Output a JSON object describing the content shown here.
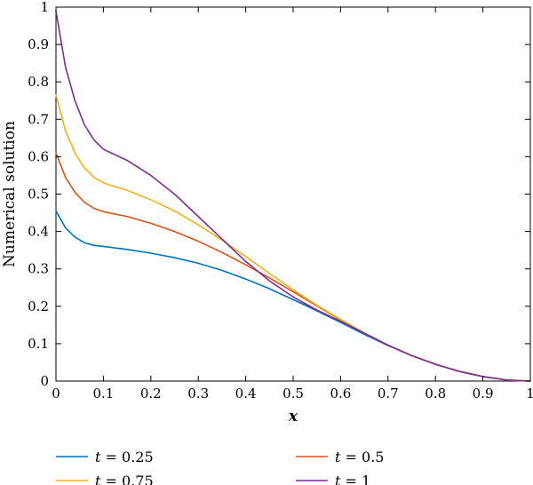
{
  "chart_data": {
    "type": "line",
    "xlabel": "x",
    "ylabel": "Numerical solution",
    "xlim": [
      0,
      1
    ],
    "ylim": [
      0,
      1
    ],
    "xticks": [
      "0",
      "0.1",
      "0.2",
      "0.3",
      "0.4",
      "0.5",
      "0.6",
      "0.7",
      "0.8",
      "0.9",
      "1"
    ],
    "yticks": [
      "0",
      "0.1",
      "0.2",
      "0.3",
      "0.4",
      "0.5",
      "0.6",
      "0.7",
      "0.8",
      "0.9",
      "1"
    ],
    "grid": false,
    "legend_position": "bottom",
    "x": [
      0,
      0.02,
      0.04,
      0.06,
      0.08,
      0.1,
      0.15,
      0.2,
      0.25,
      0.3,
      0.35,
      0.4,
      0.45,
      0.5,
      0.55,
      0.6,
      0.65,
      0.7,
      0.75,
      0.8,
      0.85,
      0.9,
      0.95,
      1
    ],
    "series": [
      {
        "name_prefix": "t",
        "name_value": " = 0.25",
        "color": "#0072BD",
        "values": [
          0.455,
          0.41,
          0.385,
          0.37,
          0.363,
          0.36,
          0.352,
          0.342,
          0.33,
          0.315,
          0.296,
          0.273,
          0.247,
          0.218,
          0.188,
          0.157,
          0.125,
          0.095,
          0.068,
          0.045,
          0.026,
          0.012,
          0.003,
          0.0
        ]
      },
      {
        "name_prefix": "t",
        "name_value": " = 0.5",
        "color": "#D95319",
        "values": [
          0.61,
          0.545,
          0.505,
          0.478,
          0.462,
          0.453,
          0.44,
          0.422,
          0.4,
          0.374,
          0.344,
          0.311,
          0.276,
          0.239,
          0.201,
          0.164,
          0.128,
          0.096,
          0.068,
          0.045,
          0.026,
          0.012,
          0.003,
          0.0
        ]
      },
      {
        "name_prefix": "t",
        "name_value": " = 0.75",
        "color": "#EDB120",
        "values": [
          0.765,
          0.67,
          0.61,
          0.57,
          0.545,
          0.53,
          0.51,
          0.485,
          0.455,
          0.418,
          0.377,
          0.333,
          0.288,
          0.244,
          0.203,
          0.165,
          0.129,
          0.096,
          0.068,
          0.045,
          0.026,
          0.012,
          0.003,
          0.0
        ]
      },
      {
        "name_prefix": "t",
        "name_value": " = 1",
        "color": "#7E2F8E",
        "values": [
          0.99,
          0.84,
          0.75,
          0.685,
          0.645,
          0.62,
          0.59,
          0.55,
          0.5,
          0.44,
          0.38,
          0.32,
          0.268,
          0.225,
          0.19,
          0.16,
          0.128,
          0.096,
          0.068,
          0.045,
          0.026,
          0.012,
          0.003,
          0.0
        ]
      }
    ]
  }
}
